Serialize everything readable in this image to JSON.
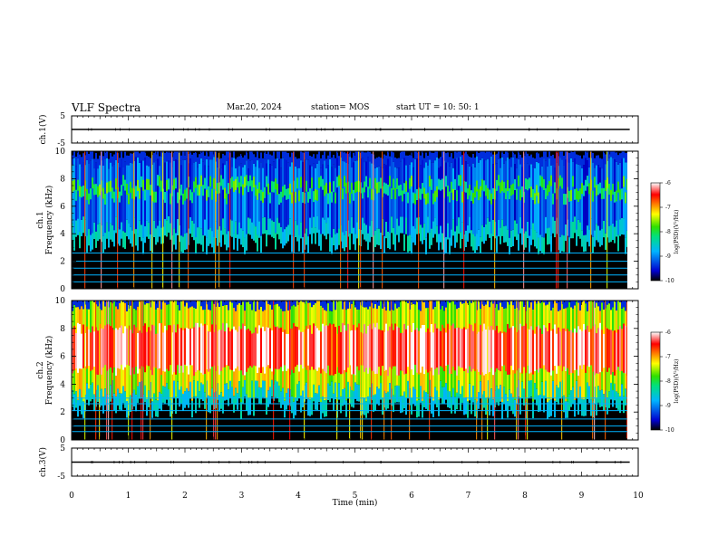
{
  "header": {
    "title": "VLF Spectra",
    "date": "Mar.20, 2024",
    "station": "station= MOS",
    "start": "start  UT  =   10: 50: 1"
  },
  "chart_data": [
    {
      "type": "line",
      "id": "ch1-waveform",
      "ylabel": "ch.1(V)",
      "ylim": [
        -5,
        5
      ],
      "yticks": [
        5,
        -5
      ],
      "xlim": [
        0,
        10
      ],
      "series": [
        {
          "values": [
            0,
            0
          ],
          "x": [
            0,
            9.85
          ]
        }
      ],
      "color": "#000000"
    },
    {
      "type": "heatmap",
      "id": "ch1-spectrogram",
      "ylabel": "ch.1\nFrequency (kHz)",
      "ylabel_lines": [
        "ch.1",
        "Frequency (kHz)"
      ],
      "ylim": [
        0,
        10
      ],
      "yticks": [
        0,
        2,
        4,
        6,
        8,
        10
      ],
      "xlim": [
        0,
        10
      ],
      "data_end_min": 9.85,
      "band_kHz": [
        4.5,
        9.0
      ],
      "band_level": -8.6,
      "background_level": -10,
      "horizontal_lines_kHz": [
        0.5,
        1.0,
        1.5,
        2.0,
        2.6
      ],
      "colorbar": {
        "label": "log(PSD) (V²/Hz)",
        "min": -10,
        "max": -6,
        "ticks": [
          -6,
          -7,
          -8,
          -9,
          -10
        ]
      }
    },
    {
      "type": "heatmap",
      "id": "ch2-spectrogram",
      "ylabel": "ch.2\nFrequency (kHz)",
      "ylabel_lines": [
        "ch.2",
        "Frequency (kHz)"
      ],
      "ylim": [
        0,
        10
      ],
      "yticks": [
        0,
        2,
        4,
        6,
        8,
        10
      ],
      "xlim": [
        0,
        10
      ],
      "data_end_min": 9.85,
      "band_kHz": [
        3.5,
        9.5
      ],
      "band_peak_kHz": [
        5.0,
        8.0
      ],
      "band_level": -6.8,
      "background_level": -10,
      "horizontal_lines_kHz": [
        0.6,
        1.0,
        1.5,
        2.1,
        2.6,
        3.0
      ],
      "colorbar": {
        "label": "log(PSD) (V²/Hz)",
        "min": -10,
        "max": -6,
        "ticks": [
          -6,
          -7,
          -8,
          -9,
          -10
        ]
      }
    },
    {
      "type": "line",
      "id": "ch3-waveform",
      "ylabel": "ch.3(V)",
      "ylim": [
        -5,
        5
      ],
      "yticks": [
        5,
        -5
      ],
      "xlim": [
        0,
        10
      ],
      "xlabel": "Time  (min)",
      "xticks": [
        0,
        1,
        2,
        3,
        4,
        5,
        6,
        7,
        8,
        9,
        10
      ],
      "series": [
        {
          "values": [
            0,
            0
          ],
          "x": [
            0,
            9.85
          ]
        }
      ],
      "color": "#000000"
    }
  ],
  "colorbar_ticks": [
    "-6",
    "-7",
    "-8",
    "-9",
    "-10"
  ],
  "colorbar_label": "log(PSD)(V²/Hz)"
}
